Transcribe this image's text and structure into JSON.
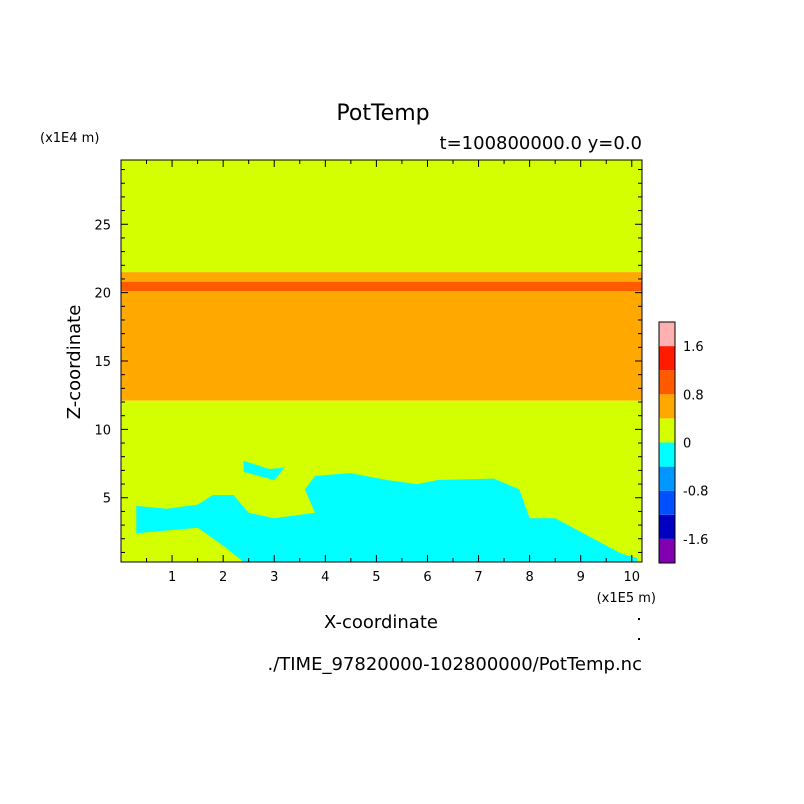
{
  "chart_data": {
    "type": "heatmap",
    "title": "PotTemp",
    "subtitle": "t=100800000.0 y=0.0",
    "xlabel": "X-coordinate",
    "ylabel": "Z-coordinate",
    "x_unit": "(x1E5 m)",
    "y_unit": "(x1E4 m)",
    "footer": "./TIME_97820000-102800000/PotTemp.nc",
    "xlim": [
      0,
      10.2
    ],
    "ylim": [
      0.3,
      29.7
    ],
    "x_ticks": [
      "1",
      "2",
      "3",
      "4",
      "5",
      "6",
      "7",
      "8",
      "9",
      "10"
    ],
    "y_ticks": [
      "5",
      "10",
      "15",
      "20",
      "25"
    ],
    "colorbar": {
      "levels": [
        -2.0,
        -1.6,
        -1.2,
        -0.8,
        -0.4,
        0,
        0.4,
        0.8,
        1.2,
        1.6,
        2.0
      ],
      "colors": [
        "#8000b0",
        "#0000c0",
        "#0050ff",
        "#0098ff",
        "#00ffff",
        "#d4ff00",
        "#ffa800",
        "#ff5a00",
        "#ff1a00",
        "#ffb0b0"
      ],
      "labels": [
        "1.6",
        "0.8",
        "0",
        "-0.8",
        "-1.6"
      ]
    },
    "bands": [
      {
        "range": "0 to 0.4",
        "z_from": 21.5,
        "z_to": 29.7,
        "color": "#d4ff00"
      },
      {
        "range": "0.4 to 0.8",
        "z_from": 20.8,
        "z_to": 21.5,
        "color": "#ffa800"
      },
      {
        "range": "0.8 to 1.2",
        "z_from": 20.1,
        "z_to": 20.8,
        "color": "#ff5a00"
      },
      {
        "range": "0.4 to 0.8",
        "z_from": 12.1,
        "z_to": 20.1,
        "color": "#ffa800"
      },
      {
        "range": "0 to 0.4",
        "z_from": 0.3,
        "z_to": 12.1,
        "color": "#d4ff00"
      }
    ],
    "regions": [
      {
        "range": "-0.4 to 0",
        "color": "#00ffff",
        "points": [
          [
            0.3,
            4.4
          ],
          [
            0.9,
            4.2
          ],
          [
            1.5,
            4.5
          ],
          [
            1.8,
            5.2
          ],
          [
            2.2,
            5.2
          ],
          [
            2.5,
            3.9
          ],
          [
            3.0,
            3.5
          ],
          [
            3.8,
            3.9
          ],
          [
            3.6,
            5.6
          ],
          [
            3.8,
            6.6
          ],
          [
            4.5,
            6.8
          ],
          [
            5.2,
            6.3
          ],
          [
            5.8,
            6.0
          ],
          [
            6.2,
            6.3
          ],
          [
            7.3,
            6.4
          ],
          [
            7.8,
            5.6
          ],
          [
            8.0,
            3.5
          ],
          [
            8.5,
            3.5
          ],
          [
            9.3,
            1.9
          ],
          [
            9.8,
            0.9
          ],
          [
            10.1,
            0.6
          ],
          [
            10.1,
            0.3
          ],
          [
            2.4,
            0.3
          ],
          [
            2.0,
            1.5
          ],
          [
            1.5,
            2.8
          ],
          [
            0.3,
            2.4
          ]
        ]
      },
      {
        "range": "-0.4 to 0",
        "color": "#00ffff",
        "points": [
          [
            2.4,
            7.7
          ],
          [
            2.9,
            7.1
          ],
          [
            3.2,
            7.2
          ],
          [
            3.0,
            6.3
          ],
          [
            2.4,
            6.9
          ]
        ]
      }
    ]
  }
}
